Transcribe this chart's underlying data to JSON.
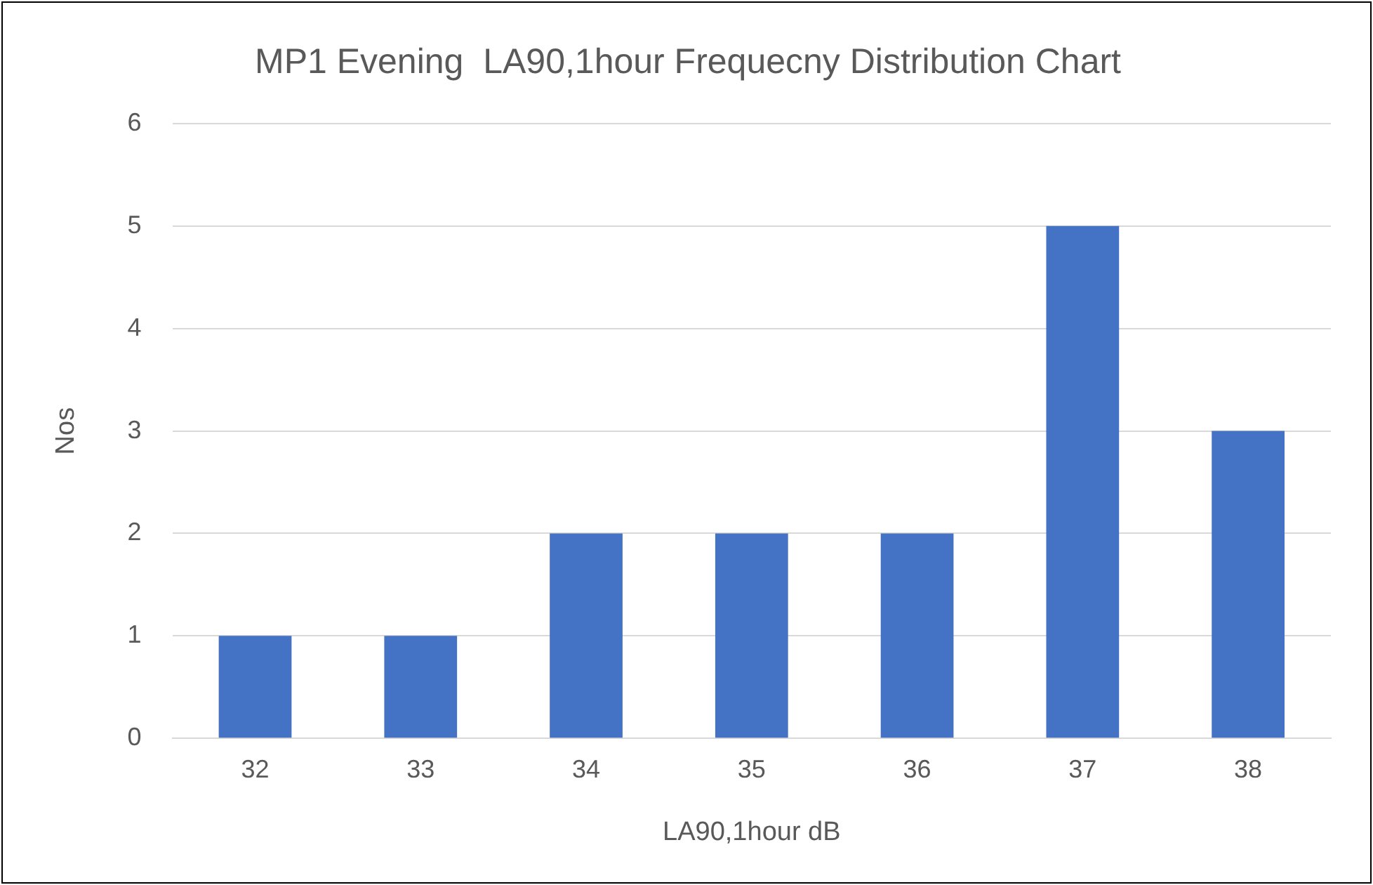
{
  "chart_data": {
    "type": "bar",
    "title": "MP1 Evening  LA90,1hour Frequecny Distribution Chart",
    "xlabel": "LA90,1hour dB",
    "ylabel": "Nos",
    "categories": [
      "32",
      "33",
      "34",
      "35",
      "36",
      "37",
      "38"
    ],
    "values": [
      1,
      1,
      2,
      2,
      2,
      5,
      3
    ],
    "color": "#4472c4",
    "ylim": [
      0,
      6
    ],
    "yticks": [
      0,
      1,
      2,
      3,
      4,
      5,
      6
    ],
    "grid": "y",
    "legend": false
  }
}
